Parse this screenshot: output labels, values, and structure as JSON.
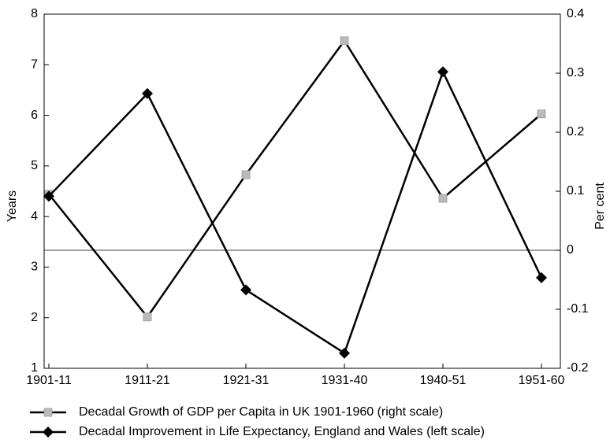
{
  "chart_data": {
    "type": "line",
    "categories": [
      "1901-11",
      "1911-21",
      "1921-31",
      "1931-40",
      "1940-51",
      "1951-60"
    ],
    "y_label": "Years",
    "y2_label": "Per cent",
    "ylim": [
      1,
      8
    ],
    "yticks": [
      1,
      2,
      3,
      4,
      5,
      6,
      7,
      8
    ],
    "y2lim": [
      -0.2,
      0.4
    ],
    "y2ticks": [
      -0.2,
      -0.1,
      0,
      0.1,
      0.2,
      0.3,
      0.4
    ],
    "series": [
      {
        "name": "Decadal Growth of GDP per Capita in UK 1901-1960 (right scale)",
        "color": "#bbbbbb",
        "marker": "square",
        "axis": "y2",
        "values": [
          0.095,
          -0.113,
          0.128,
          0.355,
          0.088,
          0.231
        ]
      },
      {
        "name": "Decadal Improvement in Life Expectancy, England and Wales (left scale)",
        "color": "#000000",
        "marker": "diamond",
        "axis": "y",
        "values": [
          4.4,
          6.43,
          2.55,
          1.3,
          6.86,
          2.79
        ]
      }
    ]
  }
}
